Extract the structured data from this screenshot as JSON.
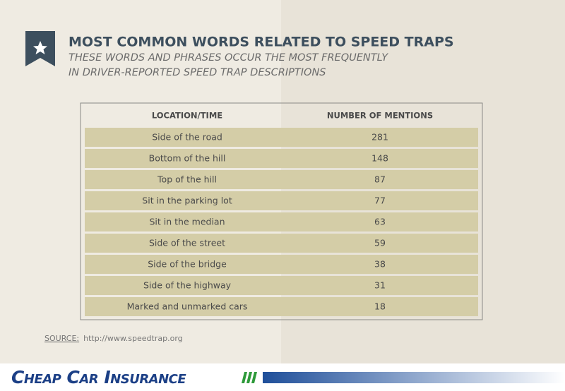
{
  "header": {
    "title": "MOST COMMON WORDS RELATED TO SPEED TRAPS",
    "subtitle": [
      "THESE WORDS AND PHRASES OCCUR THE MOST FREQUENTLY",
      "IN DRIVER-REPORTED SPEED TRAP DESCRIPTIONS"
    ]
  },
  "table": {
    "columns": [
      "LOCATION/TIME",
      "NUMBER OF MENTIONS"
    ],
    "rows": [
      [
        "Side of the road",
        281
      ],
      [
        "Bottom of the hill",
        148
      ],
      [
        "Top of the hill",
        87
      ],
      [
        "Sit in the parking lot",
        77
      ],
      [
        "Sit in the median",
        63
      ],
      [
        "Side of the street",
        59
      ],
      [
        "Side of the bridge",
        38
      ],
      [
        "Side of the highway",
        31
      ],
      [
        "Marked and unmarked cars",
        18
      ]
    ]
  },
  "source": {
    "label": "SOURCE:",
    "url": "http://www.speedtrap.org"
  },
  "footer": {
    "brand": "Cheap Car Insurance"
  }
}
